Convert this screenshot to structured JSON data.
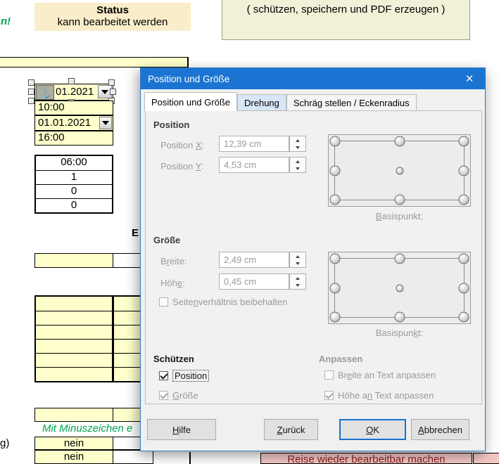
{
  "colors": {
    "titlebar_blue": "#1b74d2",
    "cell_yellow": "#ffffcc",
    "status_beige": "#faeeca",
    "note_beige": "#f1f1d8",
    "pink": "#f3c8c4",
    "pink_text": "#8b1e1e",
    "green": "#00a550",
    "disabled_gray": "#9a9a9a"
  },
  "icons": {
    "anchor": "⚓",
    "close": "×"
  },
  "sheet": {
    "green_fragment": "n!",
    "status_title": "Status",
    "status_subtitle": "kann bearbeitet werden",
    "pdf_note": "( schützen, speichern und PDF erzeugen )",
    "date_row_1": "01.2021",
    "time_row_1": "10:00",
    "date_row_2": "01.01.2021",
    "time_row_2": "16:00",
    "calc_rows": [
      "06:00",
      "1",
      "0",
      "0"
    ],
    "heading_fragment": "E",
    "minus_note": "Mit Minuszeichen e",
    "label_fragment": "g)",
    "nein_1": "nein",
    "nein_2": "nein",
    "pink_action": "Reise wieder bearbeitbar machen"
  },
  "dialog": {
    "title": "Position und Größe",
    "tabs": [
      {
        "label": "Position und Größe",
        "active": true
      },
      {
        "label": "Drehung",
        "active": false
      },
      {
        "label": "Schräg stellen / Eckenradius",
        "active": false
      }
    ],
    "position": {
      "header": "Position",
      "x_label": "Position ~X~:",
      "x_value": "12,39 cm",
      "y_label": "Position ~Y~:",
      "y_value": "4,53 cm",
      "basepoint_label": "~B~asispunkt:"
    },
    "size": {
      "header": "Größe",
      "width_label": "B~r~eite:",
      "width_value": "2,49 cm",
      "height_label": "Höh~e~:",
      "height_value": "0,45 cm",
      "keep_ratio_label": "Seite~n~verhältnis beibehalten",
      "basepoint_label": "Basispun~k~t:"
    },
    "protect": {
      "header": "Schützen",
      "position_label": "Position",
      "size_label": "~G~röße"
    },
    "adapt": {
      "header": "Anpassen",
      "width_label": "Br~e~ite an Text anpassen",
      "height_label": "Höhe a~n~ Text anpassen"
    },
    "buttons": {
      "help": "~H~ilfe",
      "back": "~Z~urück",
      "ok": "~O~K",
      "cancel": "~A~bbrechen"
    }
  }
}
